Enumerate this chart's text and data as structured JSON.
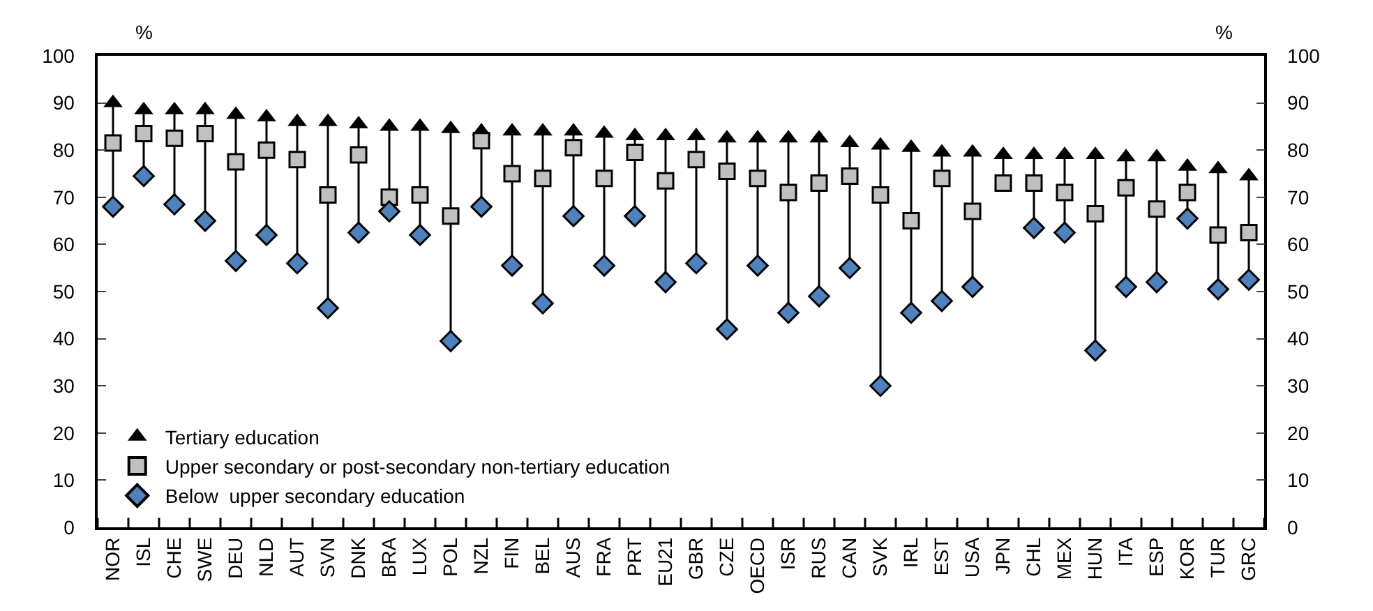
{
  "chart_data": {
    "type": "scatter",
    "categories": [
      "NOR",
      "ISL",
      "CHE",
      "SWE",
      "DEU",
      "NLD",
      "AUT",
      "SVN",
      "DNK",
      "BRA",
      "LUX",
      "POL",
      "NZL",
      "FIN",
      "BEL",
      "AUS",
      "FRA",
      "PRT",
      "EU21",
      "GBR",
      "CZE",
      "OECD",
      "ISR",
      "RUS",
      "CAN",
      "SVK",
      "IRL",
      "EST",
      "USA",
      "JPN",
      "CHL",
      "MEX",
      "HUN",
      "ITA",
      "ESP",
      "KOR",
      "TUR",
      "GRC"
    ],
    "series": [
      {
        "name": "Tertiary education",
        "color": "#000000",
        "marker": "triangle",
        "values": [
          90,
          88.5,
          88.5,
          88.5,
          87.5,
          87,
          86,
          86,
          85.5,
          85,
          85,
          84.5,
          84,
          84,
          84,
          84,
          83.5,
          83,
          83,
          83,
          82.5,
          82.5,
          82.5,
          82.5,
          81.5,
          81,
          80.5,
          79.5,
          79.5,
          79,
          79,
          79,
          79,
          78.5,
          78.5,
          76.5,
          76,
          74.5
        ]
      },
      {
        "name": "Upper secondary or post-secondary non-tertiary education",
        "color": "#c0c0c0",
        "marker": "square",
        "values": [
          81.5,
          83.5,
          82.5,
          83.5,
          77.5,
          80,
          78,
          70.5,
          79,
          70,
          70.5,
          66,
          82,
          75,
          74,
          80.5,
          74,
          79.5,
          73.5,
          78,
          75.5,
          74,
          71,
          73,
          74.5,
          70.5,
          65,
          74,
          67,
          73,
          73,
          71,
          66.5,
          72,
          67.5,
          71,
          62,
          62.5
        ]
      },
      {
        "name": "Below  upper secondary education",
        "color": "#4f81bd",
        "marker": "diamond",
        "values": [
          68,
          74.5,
          68.5,
          65,
          56.5,
          62,
          56,
          46.5,
          62.5,
          67,
          62,
          39.5,
          68,
          55.5,
          47.5,
          66,
          55.5,
          66,
          52,
          56,
          42,
          55.5,
          45.5,
          49,
          55,
          30,
          45.5,
          48,
          51,
          null,
          63.5,
          62.5,
          37.5,
          51,
          52,
          65.5,
          50.5,
          52.5
        ]
      }
    ],
    "ylabel": "%",
    "y2label": "%",
    "ylim": [
      0,
      100
    ],
    "yticks": [
      0,
      10,
      20,
      30,
      40,
      50,
      60,
      70,
      80,
      90,
      100
    ],
    "y2lim": [
      0,
      100
    ],
    "y2ticks": [
      0,
      10,
      20,
      30,
      40,
      50,
      60,
      70,
      80,
      90,
      100
    ],
    "legend": "bottom left"
  }
}
